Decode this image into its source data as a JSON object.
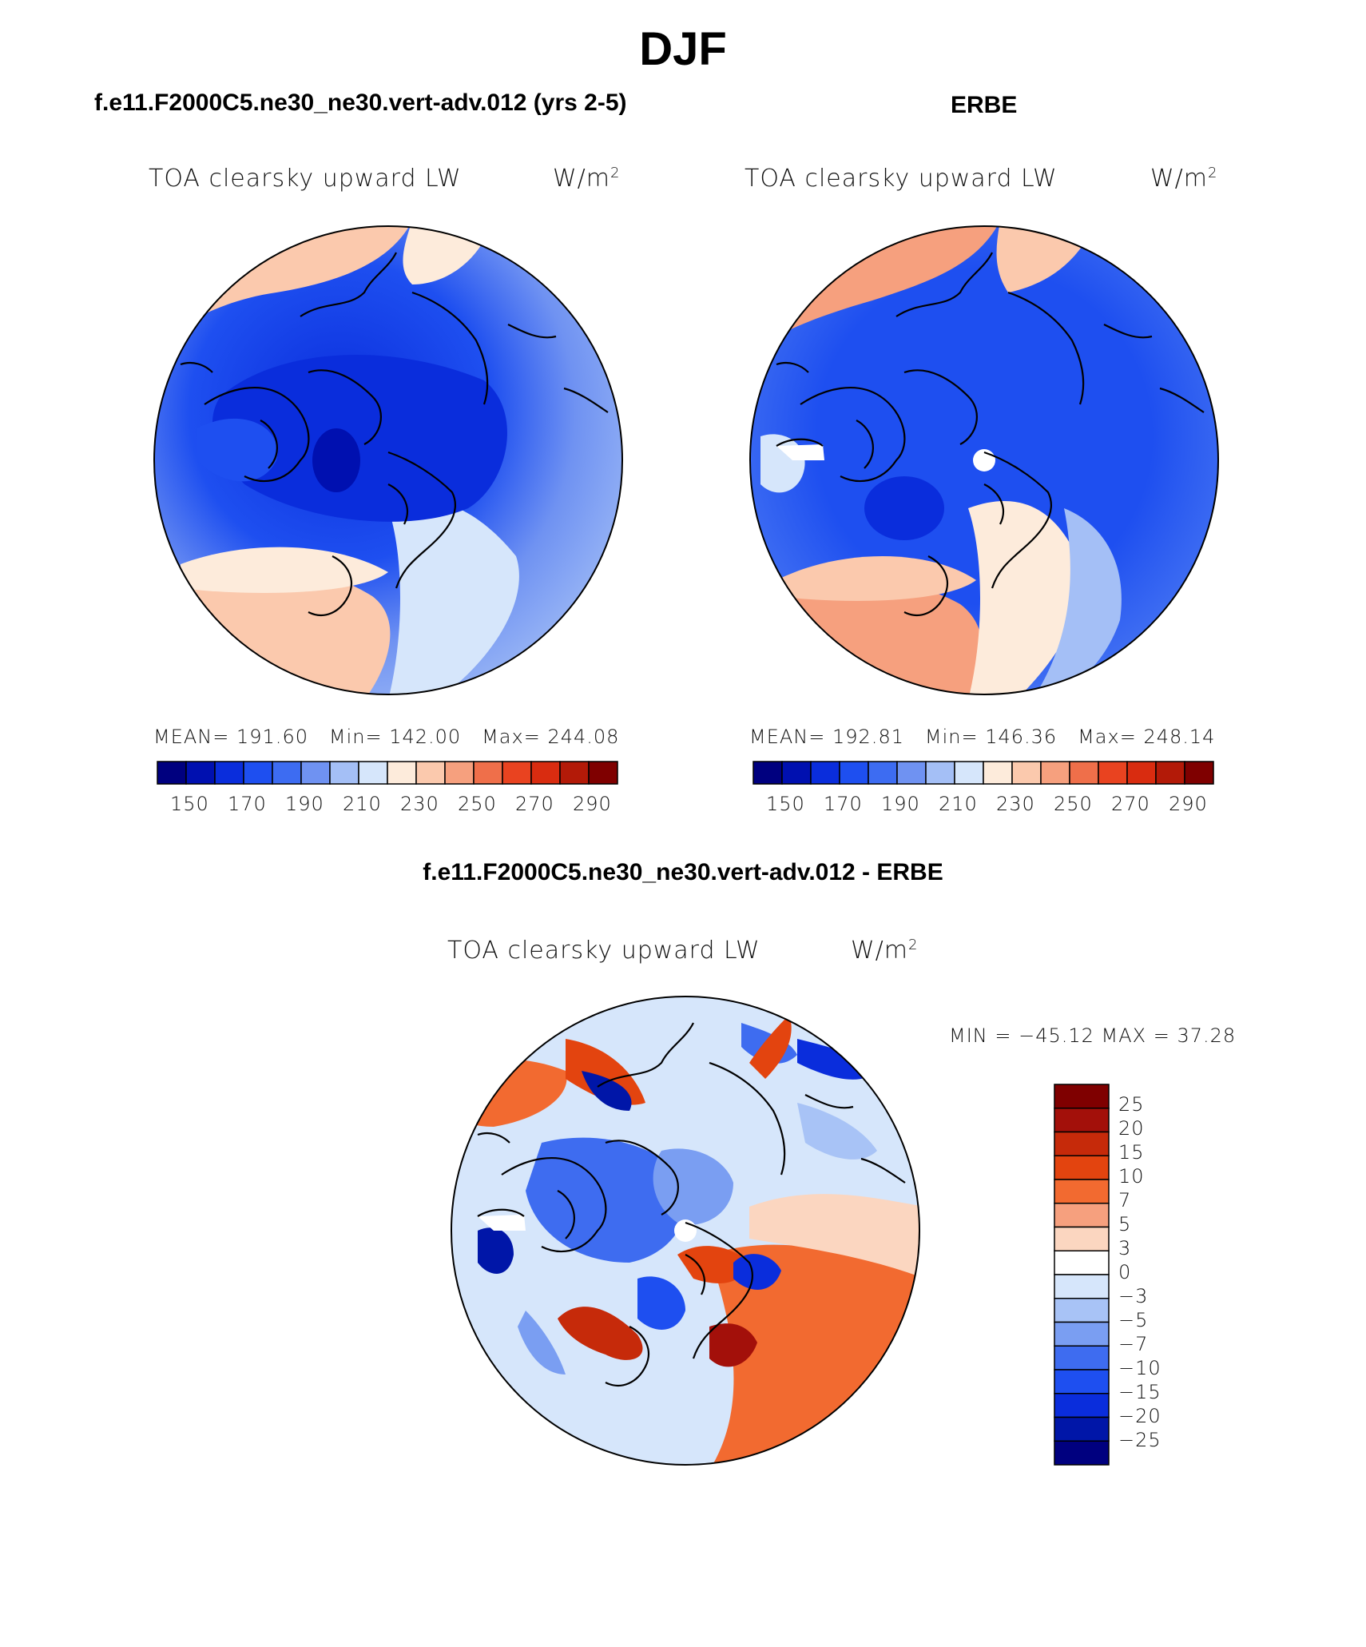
{
  "page": {
    "title": "DJF"
  },
  "panels": [
    {
      "id": "model",
      "header": "f.e11.F2000C5.ne30_ne30.vert-adv.012 (yrs 2-5)",
      "variable": "TOA clearsky upward LW",
      "units_base": "W/m",
      "units_sup": "2",
      "stats": {
        "mean_label": "MEAN=",
        "mean": "191.60",
        "min_label": "Min=",
        "min": "142.00",
        "max_label": "Max=",
        "max": "244.08"
      }
    },
    {
      "id": "obs",
      "header": "ERBE",
      "variable": "TOA clearsky upward LW",
      "units_base": "W/m",
      "units_sup": "2",
      "stats": {
        "mean_label": "MEAN=",
        "mean": "192.81",
        "min_label": "Min=",
        "min": "146.36",
        "max_label": "Max=",
        "max": "248.14"
      }
    },
    {
      "id": "diff",
      "header": "f.e11.F2000C5.ne30_ne30.vert-adv.012 - ERBE",
      "variable": "TOA clearsky upward LW",
      "units_base": "W/m",
      "units_sup": "2",
      "minmax_text": "MIN = −45.12 MAX =  37.28"
    }
  ],
  "colorbars": {
    "absolute": {
      "colors": [
        "#00007f",
        "#0010b0",
        "#0a2ddc",
        "#1e4ff0",
        "#3d6cf2",
        "#6f92f2",
        "#a4bff6",
        "#d6e6fb",
        "#fdebdb",
        "#fbc9ad",
        "#f6a07e",
        "#ef6f4a",
        "#e94320",
        "#d92c10",
        "#b31a08",
        "#7f0000"
      ],
      "labels": [
        "150",
        "170",
        "190",
        "210",
        "230",
        "250",
        "270",
        "290"
      ]
    },
    "difference": {
      "colors": [
        "#7f0000",
        "#a3100a",
        "#c62a0a",
        "#e3440f",
        "#f26a30",
        "#f6a07e",
        "#fbd6c0",
        "#ffffff",
        "#d6e6fb",
        "#a8c3f6",
        "#7a9ef2",
        "#3e6cf0",
        "#1e4ff0",
        "#0a2ddc",
        "#0016a8",
        "#00007f"
      ],
      "labels": [
        "25",
        "20",
        "15",
        "10",
        "7",
        "5",
        "3",
        "0",
        "−3",
        "−5",
        "−7",
        "−10",
        "−15",
        "−20",
        "−25"
      ]
    }
  },
  "icons": [
    "north-polar-stereographic-map"
  ]
}
